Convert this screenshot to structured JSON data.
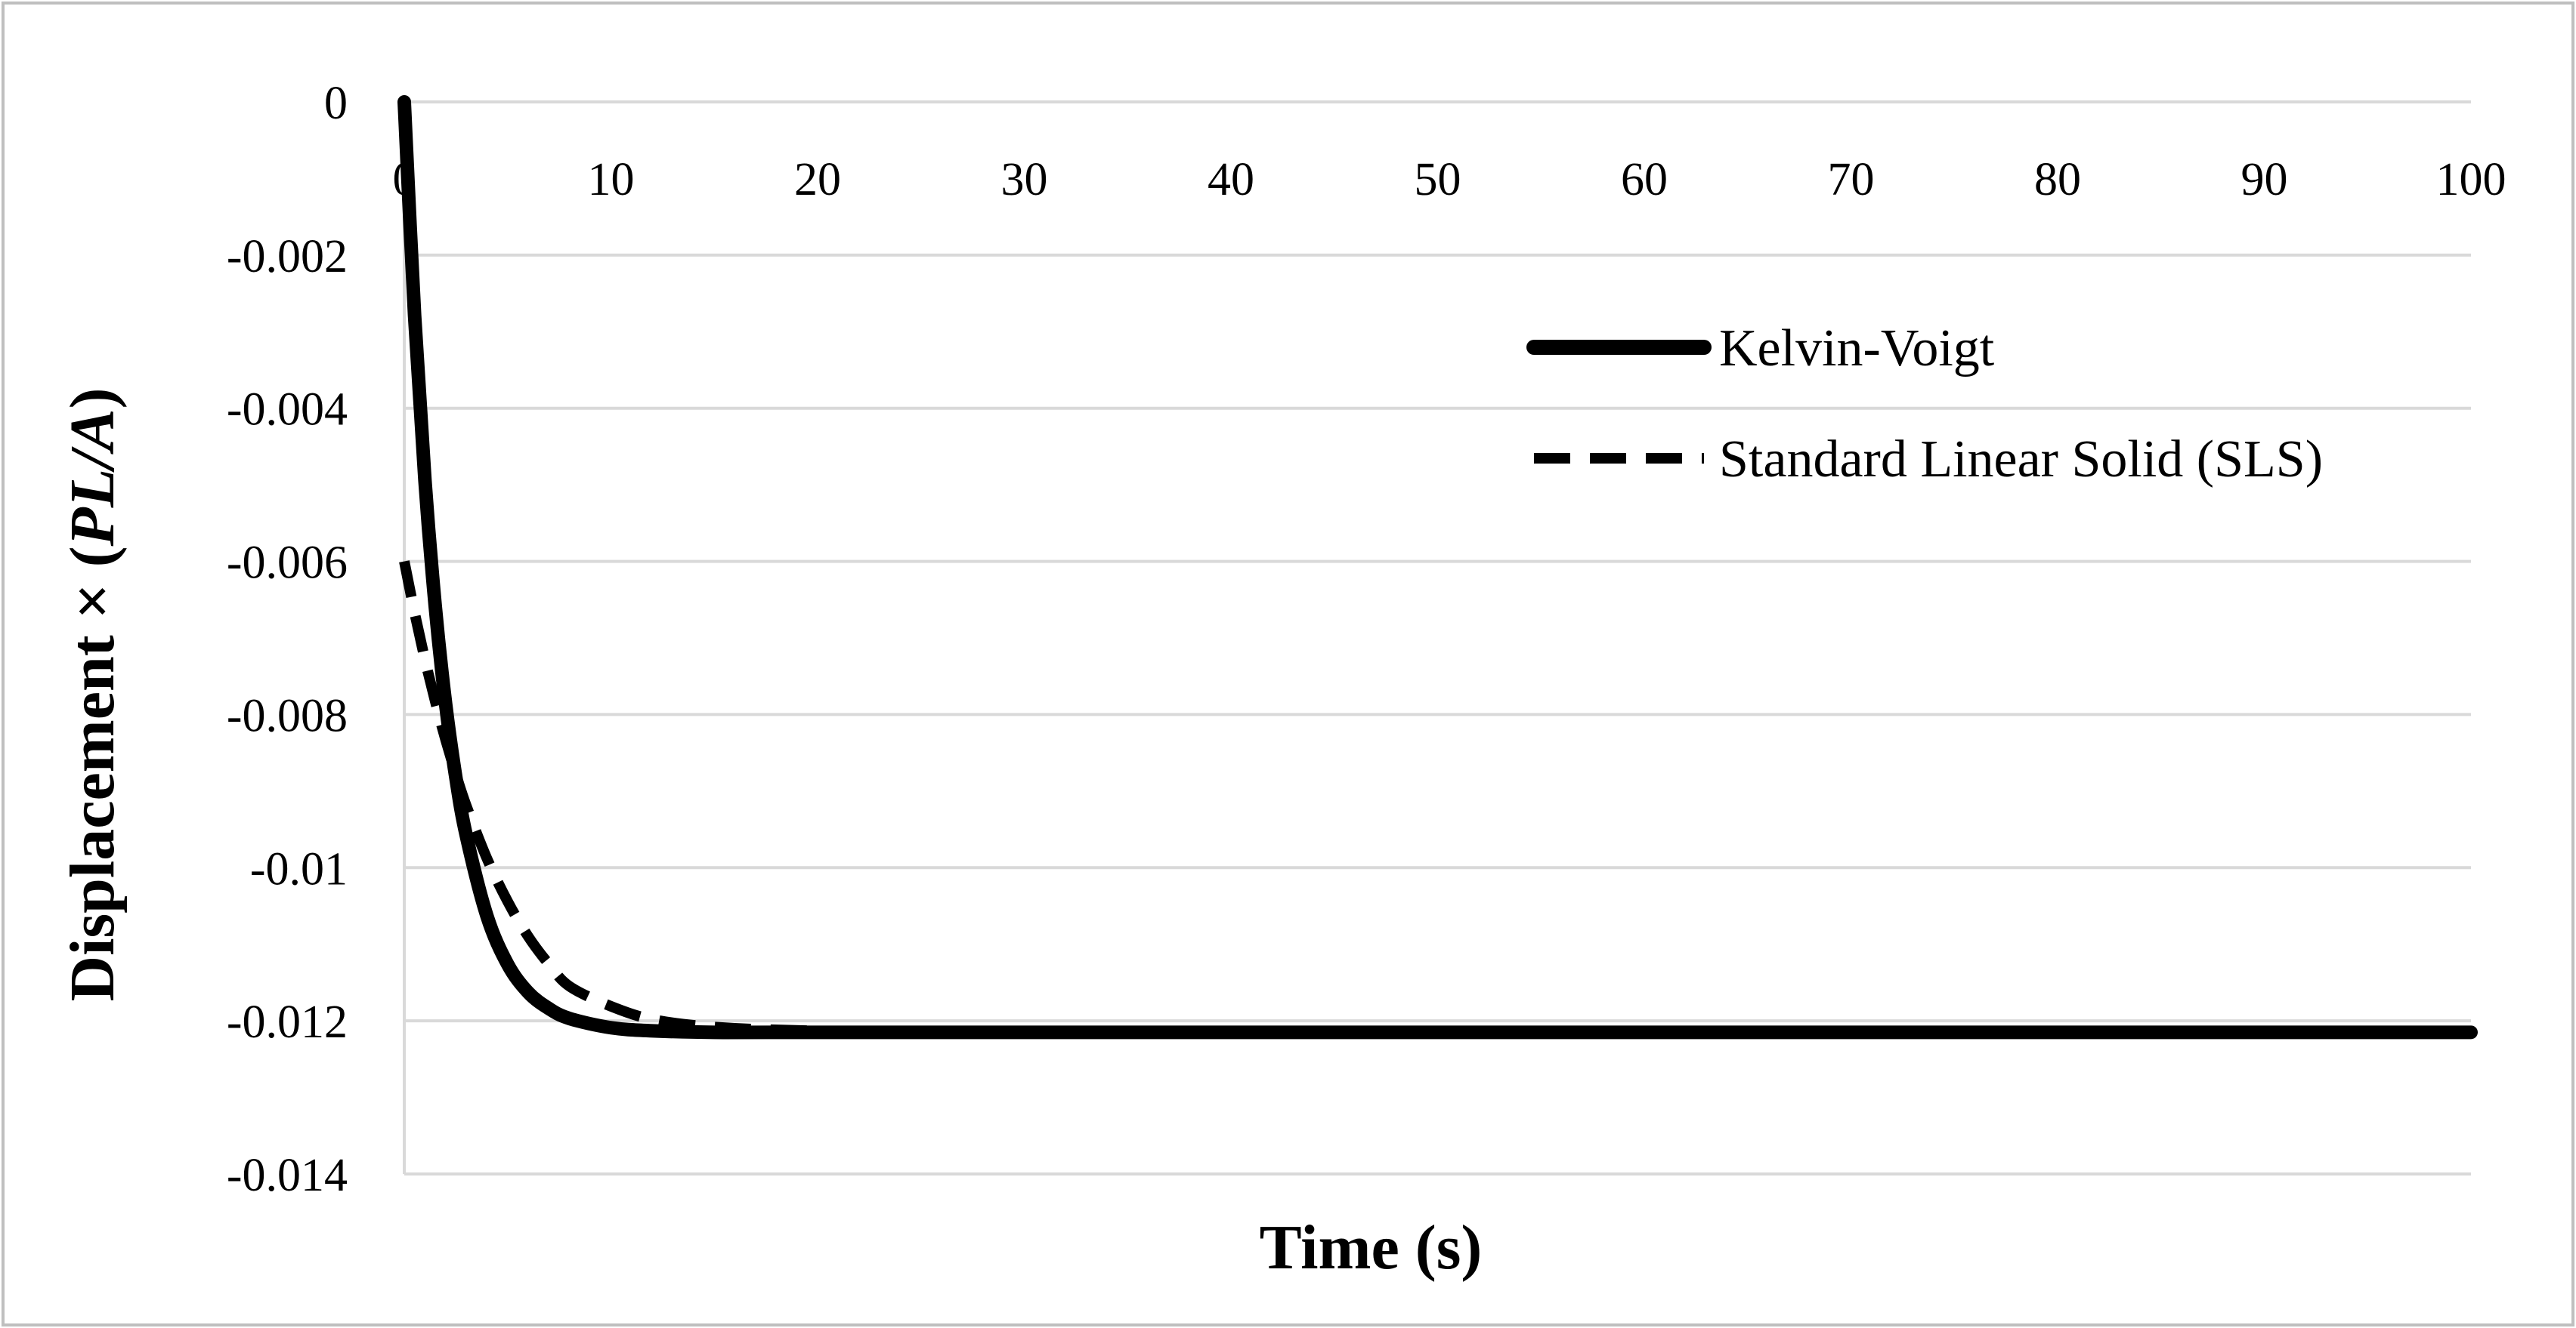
{
  "chart_data": {
    "type": "line",
    "title": "",
    "xlabel": "Time (s)",
    "ylabel_parts": {
      "prefix": "Displacement × (",
      "italic": "PL/A",
      "suffix": ")"
    },
    "xlim": [
      0,
      100
    ],
    "ylim": [
      -0.014,
      0
    ],
    "x_ticks": [
      0,
      10,
      20,
      30,
      40,
      50,
      60,
      70,
      80,
      90,
      100
    ],
    "x_tick_labels": [
      "0",
      "10",
      "20",
      "30",
      "40",
      "50",
      "60",
      "70",
      "80",
      "90",
      "100"
    ],
    "y_ticks": [
      0,
      -0.002,
      -0.004,
      -0.006,
      -0.008,
      -0.01,
      -0.012,
      -0.014
    ],
    "y_tick_labels": [
      "0",
      "-0.002",
      "-0.004",
      "-0.006",
      "-0.008",
      "-0.01",
      "-0.012",
      "-0.014"
    ],
    "x_axis_position": "top",
    "grid": true,
    "legend_position": "top-right",
    "series": [
      {
        "name": "Kelvin-Voigt",
        "line_style": "solid",
        "color": "#000000",
        "x": [
          0,
          0.5,
          1,
          1.5,
          2,
          2.5,
          3,
          4,
          5,
          6,
          7,
          8,
          10,
          12,
          15,
          20,
          30,
          50,
          100
        ],
        "y": [
          0,
          -0.00279,
          -0.00494,
          -0.00659,
          -0.00786,
          -0.00883,
          -0.00958,
          -0.01063,
          -0.01126,
          -0.01163,
          -0.01184,
          -0.01197,
          -0.01209,
          -0.01213,
          -0.01215,
          -0.01215,
          -0.01215,
          -0.01215,
          -0.01215
        ]
      },
      {
        "name": "Standard Linear Solid (SLS)",
        "line_style": "dashed",
        "color": "#000000",
        "x": [
          0,
          0.5,
          1,
          1.5,
          2,
          2.5,
          3,
          4,
          5,
          6,
          7,
          8,
          10,
          12,
          15,
          20,
          30,
          50,
          100
        ],
        "y": [
          -0.006,
          -0.00667,
          -0.00728,
          -0.00783,
          -0.00833,
          -0.00878,
          -0.00919,
          -0.00988,
          -0.01044,
          -0.0109,
          -0.01126,
          -0.01155,
          -0.01181,
          -0.01198,
          -0.01208,
          -0.01213,
          -0.01215,
          -0.01215,
          -0.01215
        ]
      }
    ]
  }
}
